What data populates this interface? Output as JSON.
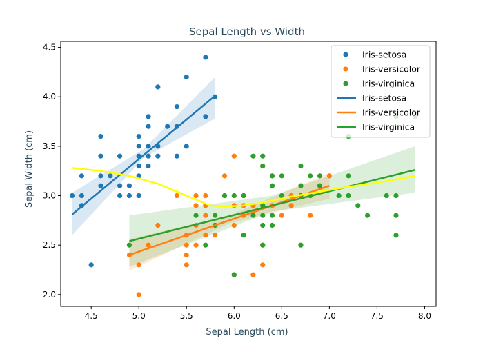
{
  "chart_data": {
    "type": "scatter",
    "title": "Sepal Length vs Width",
    "xlabel": "Sepal Length (cm)",
    "ylabel": "Sepal Width (cm)",
    "xlim": [
      4.18,
      8.12
    ],
    "ylim": [
      1.88,
      4.56
    ],
    "xticks": [
      4.5,
      5.0,
      5.5,
      6.0,
      6.5,
      7.0,
      7.5,
      8.0
    ],
    "xtick_labels": [
      "4.5",
      "5.0",
      "5.5",
      "6.0",
      "6.5",
      "7.0",
      "7.5",
      "8.0"
    ],
    "yticks": [
      2.0,
      2.5,
      3.0,
      3.5,
      4.0,
      4.5
    ],
    "ytick_labels": [
      "2.0",
      "2.5",
      "3.0",
      "3.5",
      "4.0",
      "4.5"
    ],
    "grid": false,
    "legend_position": "top-right",
    "series": [
      {
        "name": "Iris-setosa",
        "kind": "points",
        "color": "#1f77b4",
        "points": [
          [
            4.3,
            3.0
          ],
          [
            4.4,
            2.9
          ],
          [
            4.4,
            3.0
          ],
          [
            4.4,
            3.2
          ],
          [
            4.5,
            2.3
          ],
          [
            4.6,
            3.1
          ],
          [
            4.6,
            3.2
          ],
          [
            4.6,
            3.4
          ],
          [
            4.6,
            3.6
          ],
          [
            4.7,
            3.2
          ],
          [
            4.8,
            3.0
          ],
          [
            4.8,
            3.1
          ],
          [
            4.8,
            3.4
          ],
          [
            4.9,
            3.0
          ],
          [
            4.9,
            3.1
          ],
          [
            5.0,
            3.0
          ],
          [
            5.0,
            3.2
          ],
          [
            5.0,
            3.3
          ],
          [
            5.0,
            3.4
          ],
          [
            5.0,
            3.5
          ],
          [
            5.0,
            3.6
          ],
          [
            5.1,
            3.3
          ],
          [
            5.1,
            3.4
          ],
          [
            5.1,
            3.5
          ],
          [
            5.1,
            3.7
          ],
          [
            5.1,
            3.8
          ],
          [
            5.2,
            3.4
          ],
          [
            5.2,
            3.5
          ],
          [
            5.2,
            4.1
          ],
          [
            5.3,
            3.7
          ],
          [
            5.4,
            3.4
          ],
          [
            5.4,
            3.7
          ],
          [
            5.4,
            3.9
          ],
          [
            5.5,
            3.5
          ],
          [
            5.5,
            4.2
          ],
          [
            5.7,
            3.8
          ],
          [
            5.7,
            4.4
          ],
          [
            5.8,
            4.0
          ]
        ]
      },
      {
        "name": "Iris-versicolor",
        "kind": "points",
        "color": "#ff7f0e",
        "points": [
          [
            4.9,
            2.4
          ],
          [
            5.0,
            2.0
          ],
          [
            5.0,
            2.3
          ],
          [
            5.1,
            2.5
          ],
          [
            5.2,
            2.7
          ],
          [
            5.4,
            3.0
          ],
          [
            5.5,
            2.3
          ],
          [
            5.5,
            2.4
          ],
          [
            5.5,
            2.5
          ],
          [
            5.5,
            2.6
          ],
          [
            5.6,
            2.5
          ],
          [
            5.6,
            2.7
          ],
          [
            5.6,
            2.9
          ],
          [
            5.6,
            3.0
          ],
          [
            5.7,
            2.6
          ],
          [
            5.7,
            2.8
          ],
          [
            5.7,
            2.9
          ],
          [
            5.7,
            3.0
          ],
          [
            5.8,
            2.6
          ],
          [
            5.8,
            2.7
          ],
          [
            5.9,
            3.2
          ],
          [
            5.9,
            3.0
          ],
          [
            6.0,
            2.2
          ],
          [
            6.0,
            2.7
          ],
          [
            6.0,
            2.9
          ],
          [
            6.0,
            3.4
          ],
          [
            6.1,
            2.8
          ],
          [
            6.1,
            2.9
          ],
          [
            6.1,
            3.0
          ],
          [
            6.2,
            2.2
          ],
          [
            6.2,
            2.9
          ],
          [
            6.3,
            2.3
          ],
          [
            6.3,
            2.5
          ],
          [
            6.3,
            3.3
          ],
          [
            6.4,
            2.9
          ],
          [
            6.4,
            3.2
          ],
          [
            6.5,
            2.8
          ],
          [
            6.6,
            2.9
          ],
          [
            6.6,
            3.0
          ],
          [
            6.7,
            3.0
          ],
          [
            6.7,
            3.1
          ],
          [
            6.8,
            2.8
          ],
          [
            6.9,
            3.1
          ],
          [
            7.0,
            3.2
          ]
        ]
      },
      {
        "name": "Iris-virginica",
        "kind": "points",
        "color": "#2ca02c",
        "points": [
          [
            4.9,
            2.5
          ],
          [
            5.6,
            2.8
          ],
          [
            5.7,
            2.5
          ],
          [
            5.8,
            2.7
          ],
          [
            5.8,
            2.8
          ],
          [
            5.9,
            3.0
          ],
          [
            6.0,
            2.2
          ],
          [
            6.0,
            3.0
          ],
          [
            6.1,
            2.6
          ],
          [
            6.1,
            3.0
          ],
          [
            6.2,
            2.8
          ],
          [
            6.2,
            3.4
          ],
          [
            6.3,
            2.5
          ],
          [
            6.3,
            2.7
          ],
          [
            6.3,
            2.8
          ],
          [
            6.3,
            2.9
          ],
          [
            6.3,
            3.3
          ],
          [
            6.3,
            3.4
          ],
          [
            6.4,
            2.7
          ],
          [
            6.4,
            2.8
          ],
          [
            6.4,
            3.1
          ],
          [
            6.4,
            3.2
          ],
          [
            6.5,
            3.0
          ],
          [
            6.5,
            3.2
          ],
          [
            6.7,
            2.5
          ],
          [
            6.7,
            3.0
          ],
          [
            6.7,
            3.1
          ],
          [
            6.7,
            3.3
          ],
          [
            6.8,
            3.0
          ],
          [
            6.8,
            3.2
          ],
          [
            6.9,
            3.1
          ],
          [
            6.9,
            3.2
          ],
          [
            7.1,
            3.0
          ],
          [
            7.2,
            3.0
          ],
          [
            7.2,
            3.2
          ],
          [
            7.2,
            3.6
          ],
          [
            7.3,
            2.9
          ],
          [
            7.4,
            2.8
          ],
          [
            7.6,
            3.0
          ],
          [
            7.7,
            2.6
          ],
          [
            7.7,
            2.8
          ],
          [
            7.7,
            3.0
          ],
          [
            7.7,
            3.8
          ],
          [
            7.9,
            3.8
          ]
        ]
      },
      {
        "name": "Iris-setosa",
        "kind": "regression",
        "color": "#1f77b4",
        "x_range": [
          4.3,
          5.8
        ],
        "line": [
          [
            4.3,
            2.81
          ],
          [
            5.8,
            4.01
          ]
        ],
        "ci_upper": [
          [
            4.3,
            3.03
          ],
          [
            5.05,
            3.47
          ],
          [
            5.8,
            4.2
          ]
        ],
        "ci_lower": [
          [
            4.3,
            2.6
          ],
          [
            5.05,
            3.38
          ],
          [
            5.8,
            3.78
          ]
        ]
      },
      {
        "name": "Iris-versicolor",
        "kind": "regression",
        "color": "#ff7f0e",
        "x_range": [
          4.9,
          7.0
        ],
        "line": [
          [
            4.9,
            2.4
          ],
          [
            7.0,
            3.1
          ]
        ],
        "ci_upper": [
          [
            4.9,
            2.56
          ],
          [
            5.95,
            2.8
          ],
          [
            7.0,
            3.23
          ]
        ],
        "ci_lower": [
          [
            4.9,
            2.24
          ],
          [
            5.95,
            2.72
          ],
          [
            7.0,
            2.97
          ]
        ]
      },
      {
        "name": "Iris-virginica",
        "kind": "regression",
        "color": "#2ca02c",
        "x_range": [
          4.9,
          7.9
        ],
        "line": [
          [
            4.9,
            2.54
          ],
          [
            7.9,
            3.26
          ]
        ],
        "ci_upper": [
          [
            4.9,
            2.8
          ],
          [
            6.4,
            3.0
          ],
          [
            7.9,
            3.5
          ]
        ],
        "ci_lower": [
          [
            4.9,
            2.28
          ],
          [
            6.4,
            2.84
          ],
          [
            7.9,
            3.03
          ]
        ]
      },
      {
        "kind": "smooth",
        "color": "#ffff00",
        "points": [
          [
            4.3,
            3.28
          ],
          [
            4.6,
            3.25
          ],
          [
            4.9,
            3.2
          ],
          [
            5.2,
            3.12
          ],
          [
            5.4,
            3.04
          ],
          [
            5.6,
            2.96
          ],
          [
            5.75,
            2.9
          ],
          [
            5.9,
            2.89
          ],
          [
            6.1,
            2.9
          ],
          [
            6.3,
            2.93
          ],
          [
            6.6,
            2.99
          ],
          [
            6.9,
            3.04
          ],
          [
            7.2,
            3.09
          ],
          [
            7.5,
            3.13
          ],
          [
            7.9,
            3.2
          ]
        ]
      }
    ]
  }
}
